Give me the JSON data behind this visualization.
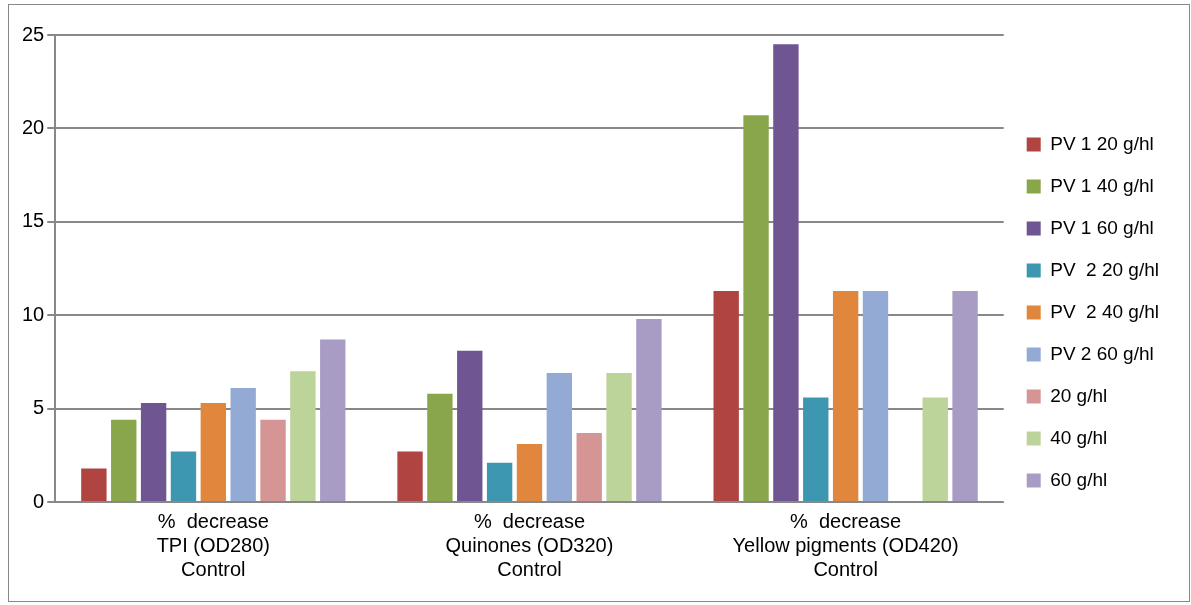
{
  "chart_data": {
    "type": "bar",
    "categories": [
      "%  decrease\nTPI (OD280)\nControl",
      "%  decrease\nQuinones (OD320)\nControl",
      "%  decrease\nYellow pigments (OD420)\nControl"
    ],
    "series": [
      {
        "name": "PV 1 20 g/hl",
        "color": "#b04441",
        "values": [
          1.8,
          2.7,
          11.3
        ]
      },
      {
        "name": "PV 1 40 g/hl",
        "color": "#8aa64a",
        "values": [
          4.4,
          5.8,
          20.7
        ]
      },
      {
        "name": "PV 1 60 g/hl",
        "color": "#6f5592",
        "values": [
          5.3,
          8.1,
          24.5
        ]
      },
      {
        "name": "PV  2 20 g/hl",
        "color": "#3d97b1",
        "values": [
          2.7,
          2.1,
          5.6
        ]
      },
      {
        "name": "PV  2 40 g/hl",
        "color": "#e0873d",
        "values": [
          5.3,
          3.1,
          11.3
        ]
      },
      {
        "name": "PV 2 60 g/hl",
        "color": "#93abd4",
        "values": [
          6.1,
          6.9,
          11.3
        ]
      },
      {
        "name": "20 g/hl",
        "color": "#d69595",
        "values": [
          4.4,
          3.7,
          0
        ]
      },
      {
        "name": "40 g/hl",
        "color": "#bcd39a",
        "values": [
          7.0,
          6.9,
          5.6
        ]
      },
      {
        "name": "60 g/hl",
        "color": "#a99cc4",
        "values": [
          8.7,
          9.8,
          11.3
        ]
      }
    ],
    "ylim": [
      0,
      25
    ],
    "yticks": [
      0,
      5,
      10,
      15,
      20,
      25
    ],
    "grid": "y",
    "legend": "right"
  }
}
